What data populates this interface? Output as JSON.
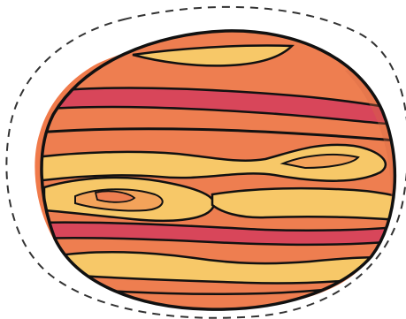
{
  "illustration": {
    "subject_icon": "jupiter-planet-icon",
    "cut_line": "dashed-outline",
    "colors": {
      "background": "#ffffff",
      "blob": "#f07a4a",
      "planet_base": "#ee7e50",
      "band_dark": "#d8465a",
      "band_light": "#f7c868",
      "band_mid": "#f3a35a",
      "outline": "#111111",
      "dash": "#333333"
    }
  }
}
